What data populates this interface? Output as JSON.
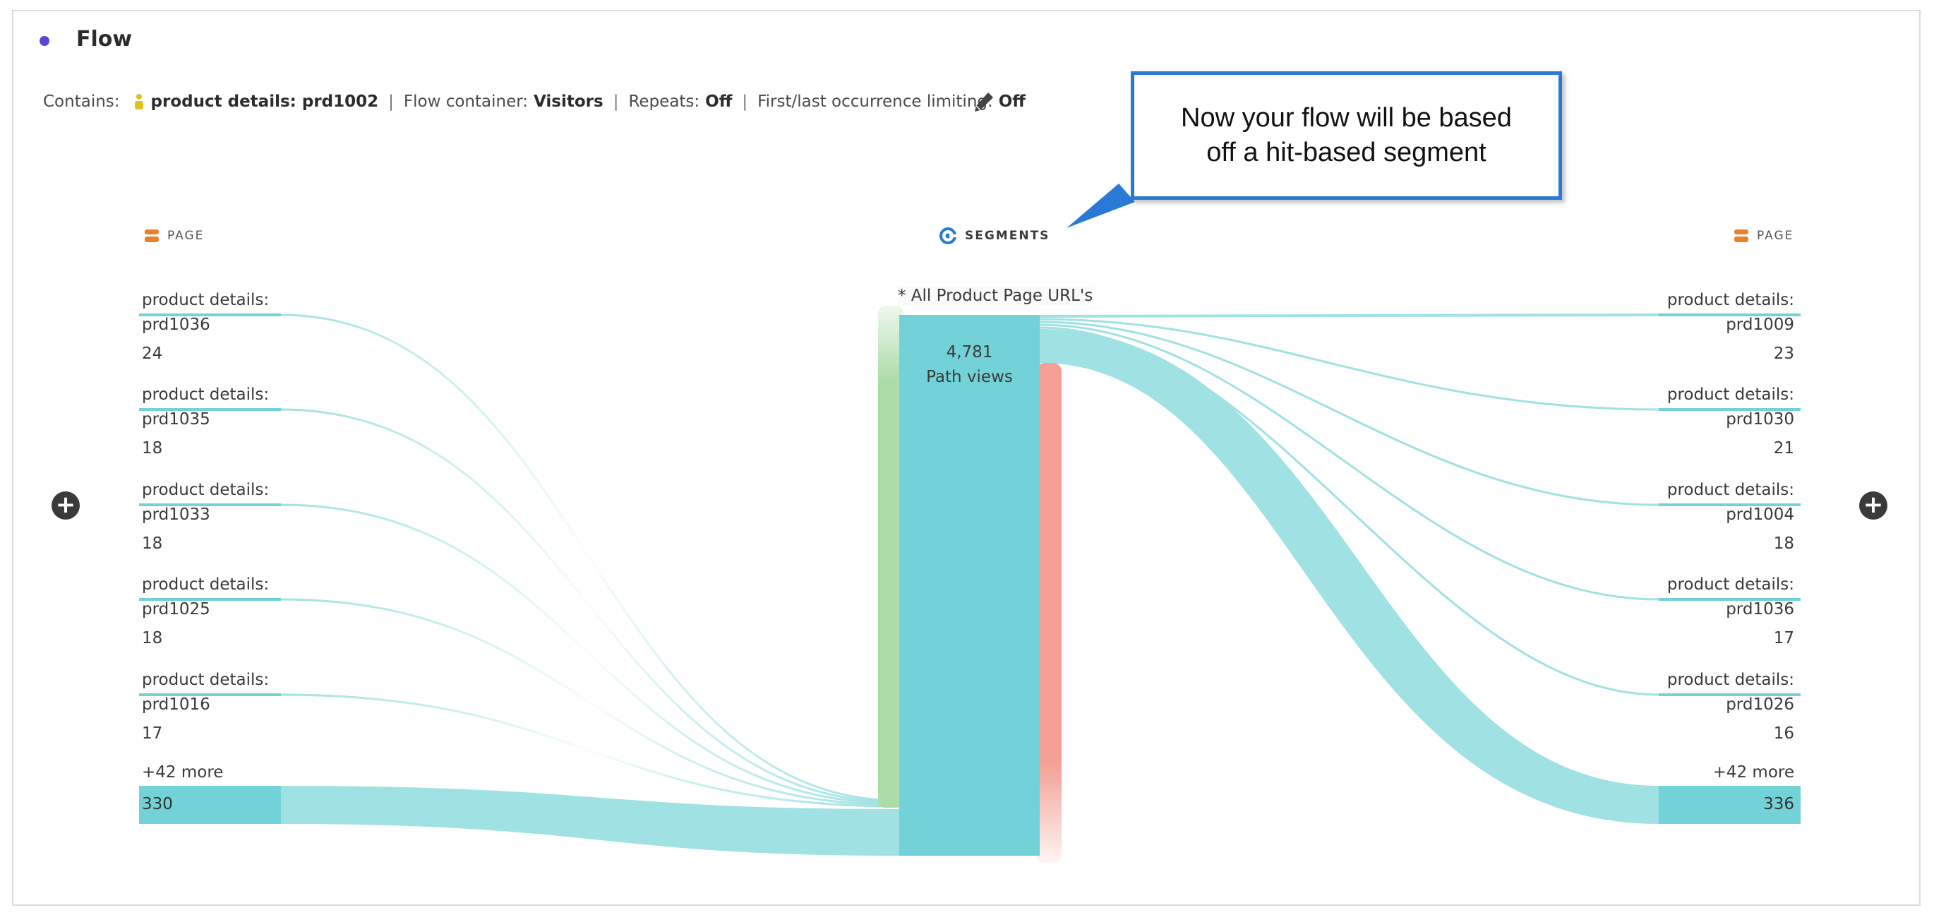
{
  "header": {
    "title": "Flow",
    "accent_color": "#5a45d6"
  },
  "settings": {
    "contains_label": "Contains:",
    "contains_value": "product details: prd1002",
    "container_label": "Flow container:",
    "container_value": "Visitors",
    "repeats_label": "Repeats:",
    "repeats_value": "Off",
    "limiting_label": "First/last occurrence limiting:",
    "limiting_value": "Off",
    "edit_icon": "pencil-icon"
  },
  "callout": {
    "line1": "Now your flow will be based",
    "line2": "off a hit-based segment",
    "color": "#2a7ad5"
  },
  "columns": {
    "left": "PAGE",
    "center": "SEGMENTS",
    "right": "PAGE"
  },
  "left_nodes": [
    {
      "line1": "product details:",
      "line2": "prd1036",
      "value": "24"
    },
    {
      "line1": "product details:",
      "line2": "prd1035",
      "value": "18"
    },
    {
      "line1": "product details:",
      "line2": "prd1033",
      "value": "18"
    },
    {
      "line1": "product details:",
      "line2": "prd1025",
      "value": "18"
    },
    {
      "line1": "product details:",
      "line2": "prd1016",
      "value": "17"
    }
  ],
  "left_more": {
    "label": "+42 more",
    "value": "330"
  },
  "center_node": {
    "label": "* All Product Page URL's",
    "value": "4,781",
    "unit": "Path views"
  },
  "right_nodes": [
    {
      "line1": "product details:",
      "line2": "prd1009",
      "value": "23"
    },
    {
      "line1": "product details:",
      "line2": "prd1030",
      "value": "21"
    },
    {
      "line1": "product details:",
      "line2": "prd1004",
      "value": "18"
    },
    {
      "line1": "product details:",
      "line2": "prd1036",
      "value": "17"
    },
    {
      "line1": "product details:",
      "line2": "prd1026",
      "value": "16"
    }
  ],
  "right_more": {
    "label": "+42 more",
    "value": "336"
  },
  "colors": {
    "node": "#72d2d8",
    "flow": "#a0e1e3",
    "entry": "#acdca8",
    "exit": "#f4a095",
    "dimension_icon": "#e8822a",
    "segment_icon": "#2a7ad5"
  }
}
